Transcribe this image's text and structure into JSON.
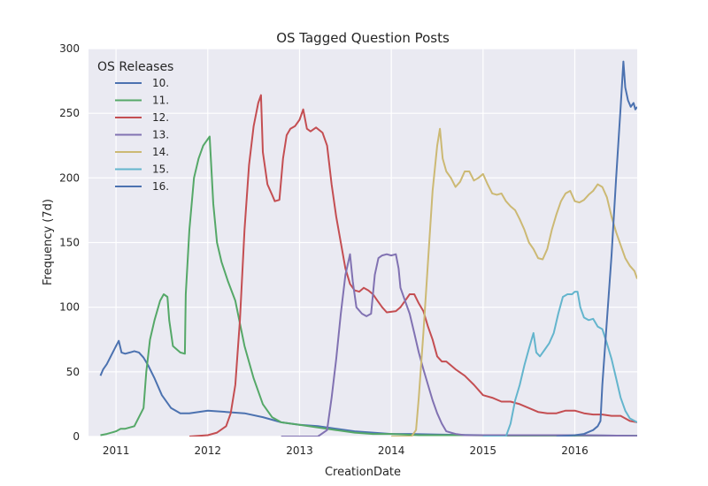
{
  "chart_data": {
    "type": "line",
    "title": "OS Tagged Question Posts",
    "xlabel": "CreationDate",
    "ylabel": "Frequency (7d)",
    "xlim": [
      2010.7,
      2016.68
    ],
    "ylim": [
      0,
      300
    ],
    "xticks": [
      2011,
      2012,
      2013,
      2014,
      2015,
      2016
    ],
    "xtick_labels": [
      "2011",
      "2012",
      "2013",
      "2014",
      "2015",
      "2016"
    ],
    "yticks": [
      0,
      50,
      100,
      150,
      200,
      250,
      300
    ],
    "ytick_labels": [
      "0",
      "50",
      "100",
      "150",
      "200",
      "250",
      "300"
    ],
    "grid": true,
    "background": "#eaeaf2",
    "legend": {
      "title": "OS Releases",
      "placement": "top-left"
    },
    "series": [
      {
        "name": "10.",
        "color": "#4c72b0",
        "points": [
          [
            2010.83,
            47
          ],
          [
            2010.86,
            52
          ],
          [
            2010.9,
            56
          ],
          [
            2010.95,
            63
          ],
          [
            2011.0,
            70
          ],
          [
            2011.03,
            74
          ],
          [
            2011.06,
            65
          ],
          [
            2011.1,
            64
          ],
          [
            2011.15,
            65
          ],
          [
            2011.2,
            66
          ],
          [
            2011.25,
            65
          ],
          [
            2011.3,
            61
          ],
          [
            2011.35,
            55
          ],
          [
            2011.42,
            45
          ],
          [
            2011.5,
            32
          ],
          [
            2011.6,
            22
          ],
          [
            2011.7,
            18
          ],
          [
            2011.8,
            18
          ],
          [
            2011.9,
            19
          ],
          [
            2012.0,
            20
          ],
          [
            2012.2,
            19
          ],
          [
            2012.4,
            18
          ],
          [
            2012.6,
            15
          ],
          [
            2012.8,
            11
          ],
          [
            2013.0,
            9
          ],
          [
            2013.2,
            8
          ],
          [
            2013.4,
            6
          ],
          [
            2013.6,
            4
          ],
          [
            2013.8,
            3
          ],
          [
            2014.0,
            2
          ],
          [
            2014.2,
            2
          ],
          [
            2014.5,
            1.5
          ],
          [
            2015.0,
            1
          ],
          [
            2015.5,
            1
          ],
          [
            2016.0,
            1
          ],
          [
            2016.68,
            0.5
          ]
        ]
      },
      {
        "name": "11.",
        "color": "#55a868",
        "points": [
          [
            2010.83,
            1
          ],
          [
            2010.9,
            2
          ],
          [
            2011.0,
            4
          ],
          [
            2011.05,
            6
          ],
          [
            2011.1,
            6
          ],
          [
            2011.2,
            8
          ],
          [
            2011.25,
            15
          ],
          [
            2011.3,
            22
          ],
          [
            2011.33,
            50
          ],
          [
            2011.37,
            75
          ],
          [
            2011.42,
            90
          ],
          [
            2011.48,
            105
          ],
          [
            2011.52,
            110
          ],
          [
            2011.56,
            108
          ],
          [
            2011.58,
            90
          ],
          [
            2011.62,
            70
          ],
          [
            2011.7,
            65
          ],
          [
            2011.75,
            64
          ],
          [
            2011.76,
            110
          ],
          [
            2011.8,
            160
          ],
          [
            2011.85,
            200
          ],
          [
            2011.9,
            215
          ],
          [
            2011.95,
            225
          ],
          [
            2012.02,
            232
          ],
          [
            2012.06,
            180
          ],
          [
            2012.1,
            150
          ],
          [
            2012.15,
            135
          ],
          [
            2012.22,
            120
          ],
          [
            2012.3,
            105
          ],
          [
            2012.4,
            70
          ],
          [
            2012.5,
            45
          ],
          [
            2012.6,
            25
          ],
          [
            2012.7,
            15
          ],
          [
            2012.8,
            11
          ],
          [
            2012.9,
            10
          ],
          [
            2013.0,
            9
          ],
          [
            2013.2,
            7
          ],
          [
            2013.4,
            5
          ],
          [
            2013.6,
            3
          ],
          [
            2013.8,
            2
          ],
          [
            2014.0,
            2
          ],
          [
            2014.3,
            1
          ],
          [
            2014.8,
            1
          ],
          [
            2015.5,
            0.5
          ],
          [
            2016.0,
            0.5
          ],
          [
            2016.68,
            0.5
          ]
        ]
      },
      {
        "name": "12.",
        "color": "#c44e52",
        "points": [
          [
            2011.8,
            0
          ],
          [
            2012.0,
            1
          ],
          [
            2012.1,
            3
          ],
          [
            2012.2,
            8
          ],
          [
            2012.25,
            18
          ],
          [
            2012.3,
            40
          ],
          [
            2012.35,
            90
          ],
          [
            2012.4,
            160
          ],
          [
            2012.45,
            210
          ],
          [
            2012.5,
            240
          ],
          [
            2012.55,
            258
          ],
          [
            2012.58,
            264
          ],
          [
            2012.6,
            220
          ],
          [
            2012.65,
            195
          ],
          [
            2012.7,
            187
          ],
          [
            2012.73,
            182
          ],
          [
            2012.78,
            183
          ],
          [
            2012.82,
            215
          ],
          [
            2012.86,
            233
          ],
          [
            2012.9,
            238
          ],
          [
            2012.95,
            240
          ],
          [
            2013.0,
            245
          ],
          [
            2013.04,
            253
          ],
          [
            2013.08,
            238
          ],
          [
            2013.12,
            236
          ],
          [
            2013.18,
            239
          ],
          [
            2013.25,
            235
          ],
          [
            2013.3,
            225
          ],
          [
            2013.35,
            195
          ],
          [
            2013.4,
            170
          ],
          [
            2013.45,
            150
          ],
          [
            2013.5,
            130
          ],
          [
            2013.55,
            118
          ],
          [
            2013.6,
            113
          ],
          [
            2013.65,
            112
          ],
          [
            2013.7,
            115
          ],
          [
            2013.75,
            113
          ],
          [
            2013.8,
            110
          ],
          [
            2013.85,
            105
          ],
          [
            2013.9,
            100
          ],
          [
            2013.95,
            96
          ],
          [
            2014.05,
            97
          ],
          [
            2014.1,
            100
          ],
          [
            2014.15,
            105
          ],
          [
            2014.2,
            110
          ],
          [
            2014.25,
            110
          ],
          [
            2014.3,
            103
          ],
          [
            2014.35,
            97
          ],
          [
            2014.4,
            85
          ],
          [
            2014.45,
            75
          ],
          [
            2014.5,
            62
          ],
          [
            2014.55,
            58
          ],
          [
            2014.6,
            58
          ],
          [
            2014.7,
            52
          ],
          [
            2014.8,
            47
          ],
          [
            2014.9,
            40
          ],
          [
            2015.0,
            32
          ],
          [
            2015.1,
            30
          ],
          [
            2015.2,
            27
          ],
          [
            2015.3,
            27
          ],
          [
            2015.4,
            25
          ],
          [
            2015.5,
            22
          ],
          [
            2015.6,
            19
          ],
          [
            2015.7,
            18
          ],
          [
            2015.8,
            18
          ],
          [
            2015.9,
            20
          ],
          [
            2016.0,
            20
          ],
          [
            2016.1,
            18
          ],
          [
            2016.2,
            17
          ],
          [
            2016.3,
            17
          ],
          [
            2016.4,
            16
          ],
          [
            2016.5,
            16
          ],
          [
            2016.55,
            14
          ],
          [
            2016.6,
            12
          ],
          [
            2016.68,
            11
          ]
        ]
      },
      {
        "name": "13.",
        "color": "#8172b2",
        "points": [
          [
            2012.8,
            0
          ],
          [
            2013.0,
            0
          ],
          [
            2013.2,
            0
          ],
          [
            2013.3,
            5
          ],
          [
            2013.35,
            30
          ],
          [
            2013.4,
            60
          ],
          [
            2013.45,
            95
          ],
          [
            2013.5,
            125
          ],
          [
            2013.55,
            141
          ],
          [
            2013.58,
            120
          ],
          [
            2013.62,
            100
          ],
          [
            2013.68,
            95
          ],
          [
            2013.73,
            93
          ],
          [
            2013.78,
            95
          ],
          [
            2013.82,
            125
          ],
          [
            2013.86,
            138
          ],
          [
            2013.9,
            140
          ],
          [
            2013.95,
            141
          ],
          [
            2014.0,
            140
          ],
          [
            2014.05,
            141
          ],
          [
            2014.08,
            130
          ],
          [
            2014.1,
            115
          ],
          [
            2014.15,
            105
          ],
          [
            2014.2,
            95
          ],
          [
            2014.25,
            80
          ],
          [
            2014.3,
            65
          ],
          [
            2014.35,
            52
          ],
          [
            2014.4,
            40
          ],
          [
            2014.45,
            28
          ],
          [
            2014.5,
            18
          ],
          [
            2014.55,
            10
          ],
          [
            2014.6,
            4
          ],
          [
            2014.7,
            2
          ],
          [
            2014.8,
            1
          ],
          [
            2015.0,
            1
          ],
          [
            2015.5,
            1
          ],
          [
            2016.0,
            1
          ],
          [
            2016.68,
            0.5
          ]
        ]
      },
      {
        "name": "14.",
        "color": "#ccb974",
        "points": [
          [
            2014.0,
            0
          ],
          [
            2014.22,
            0
          ],
          [
            2014.27,
            5
          ],
          [
            2014.3,
            30
          ],
          [
            2014.35,
            80
          ],
          [
            2014.4,
            135
          ],
          [
            2014.45,
            190
          ],
          [
            2014.5,
            225
          ],
          [
            2014.53,
            238
          ],
          [
            2014.56,
            215
          ],
          [
            2014.6,
            205
          ],
          [
            2014.65,
            200
          ],
          [
            2014.7,
            193
          ],
          [
            2014.75,
            197
          ],
          [
            2014.8,
            205
          ],
          [
            2014.85,
            205
          ],
          [
            2014.9,
            198
          ],
          [
            2014.95,
            200
          ],
          [
            2015.0,
            203
          ],
          [
            2015.05,
            195
          ],
          [
            2015.1,
            188
          ],
          [
            2015.15,
            187
          ],
          [
            2015.2,
            188
          ],
          [
            2015.25,
            182
          ],
          [
            2015.3,
            178
          ],
          [
            2015.35,
            175
          ],
          [
            2015.4,
            168
          ],
          [
            2015.45,
            160
          ],
          [
            2015.5,
            150
          ],
          [
            2015.55,
            145
          ],
          [
            2015.6,
            138
          ],
          [
            2015.65,
            137
          ],
          [
            2015.7,
            145
          ],
          [
            2015.75,
            160
          ],
          [
            2015.8,
            172
          ],
          [
            2015.85,
            182
          ],
          [
            2015.9,
            188
          ],
          [
            2015.95,
            190
          ],
          [
            2016.0,
            182
          ],
          [
            2016.05,
            181
          ],
          [
            2016.1,
            183
          ],
          [
            2016.15,
            187
          ],
          [
            2016.2,
            190
          ],
          [
            2016.25,
            195
          ],
          [
            2016.3,
            193
          ],
          [
            2016.35,
            185
          ],
          [
            2016.4,
            170
          ],
          [
            2016.45,
            158
          ],
          [
            2016.5,
            148
          ],
          [
            2016.55,
            138
          ],
          [
            2016.6,
            132
          ],
          [
            2016.65,
            128
          ],
          [
            2016.68,
            122
          ]
        ]
      },
      {
        "name": "15.",
        "color": "#64b5cd",
        "points": [
          [
            2015.0,
            0
          ],
          [
            2015.25,
            0
          ],
          [
            2015.3,
            10
          ],
          [
            2015.35,
            28
          ],
          [
            2015.4,
            40
          ],
          [
            2015.45,
            55
          ],
          [
            2015.5,
            68
          ],
          [
            2015.55,
            80
          ],
          [
            2015.58,
            65
          ],
          [
            2015.62,
            62
          ],
          [
            2015.67,
            67
          ],
          [
            2015.72,
            72
          ],
          [
            2015.77,
            80
          ],
          [
            2015.82,
            95
          ],
          [
            2015.87,
            108
          ],
          [
            2015.92,
            110
          ],
          [
            2015.97,
            110
          ],
          [
            2016.0,
            112
          ],
          [
            2016.03,
            112
          ],
          [
            2016.06,
            100
          ],
          [
            2016.1,
            92
          ],
          [
            2016.15,
            90
          ],
          [
            2016.2,
            91
          ],
          [
            2016.25,
            85
          ],
          [
            2016.3,
            83
          ],
          [
            2016.35,
            72
          ],
          [
            2016.4,
            60
          ],
          [
            2016.45,
            45
          ],
          [
            2016.5,
            30
          ],
          [
            2016.55,
            20
          ],
          [
            2016.6,
            14
          ],
          [
            2016.68,
            11
          ]
        ]
      },
      {
        "name": "16.",
        "color": "#4c72b0",
        "points": [
          [
            2015.8,
            0
          ],
          [
            2016.0,
            1
          ],
          [
            2016.1,
            2
          ],
          [
            2016.2,
            5
          ],
          [
            2016.25,
            8
          ],
          [
            2016.28,
            12
          ],
          [
            2016.3,
            40
          ],
          [
            2016.35,
            90
          ],
          [
            2016.4,
            140
          ],
          [
            2016.45,
            200
          ],
          [
            2016.5,
            255
          ],
          [
            2016.53,
            290
          ],
          [
            2016.55,
            270
          ],
          [
            2016.58,
            260
          ],
          [
            2016.61,
            255
          ],
          [
            2016.64,
            258
          ],
          [
            2016.66,
            253
          ],
          [
            2016.68,
            255
          ]
        ]
      }
    ]
  }
}
